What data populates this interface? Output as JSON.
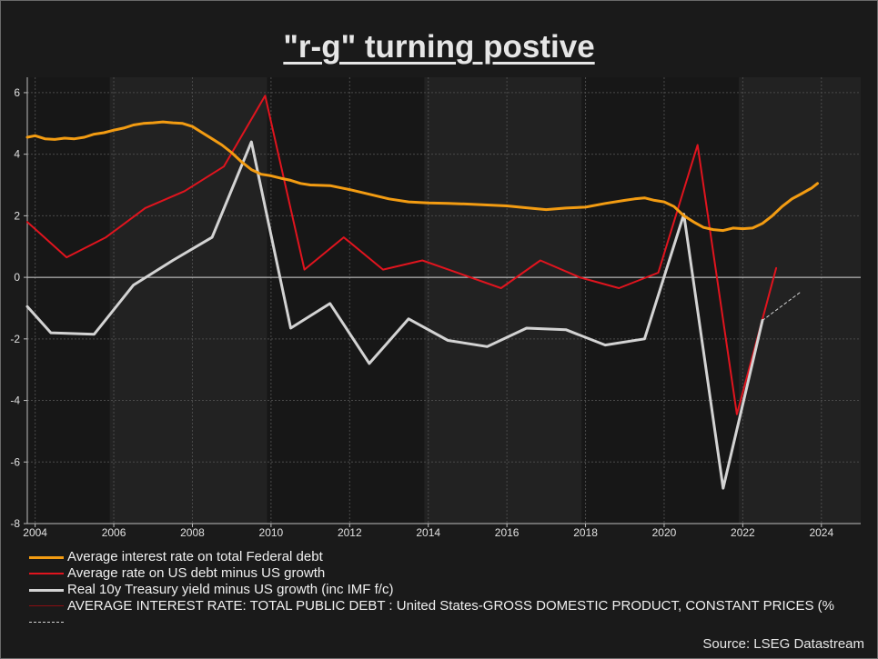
{
  "chart_data": {
    "type": "line",
    "title": "\"r-g\" turning postive",
    "xlabel": "",
    "ylabel": "",
    "xlim": [
      2003.8,
      2025.0
    ],
    "ylim": [
      -8,
      6.5
    ],
    "xticks": [
      2004,
      2006,
      2008,
      2010,
      2012,
      2014,
      2016,
      2018,
      2020,
      2022,
      2024
    ],
    "xtick_labels": [
      "2004",
      "2006",
      "2008",
      "2010",
      "2012",
      "2014",
      "2016",
      "2018",
      "2020",
      "2022",
      "2024"
    ],
    "yticks": [
      -8,
      -6,
      -4,
      -2,
      0,
      2,
      4,
      6
    ],
    "ytick_labels": [
      "-8",
      "-6",
      "-4",
      "-2",
      "0",
      "2",
      "4",
      "6"
    ],
    "grid": true,
    "zero_line": true,
    "shaded_bands": [
      [
        2005.9,
        2009.9
      ],
      [
        2013.9,
        2017.9
      ],
      [
        2021.9,
        2025.0
      ]
    ],
    "series": [
      {
        "name": "Average interest rate on total Federal debt",
        "color": "#f39c12",
        "style": "solid",
        "points": [
          [
            2003.8,
            4.55
          ],
          [
            2004.0,
            4.6
          ],
          [
            2004.25,
            4.5
          ],
          [
            2004.5,
            4.48
          ],
          [
            2004.75,
            4.52
          ],
          [
            2005.0,
            4.5
          ],
          [
            2005.25,
            4.55
          ],
          [
            2005.5,
            4.65
          ],
          [
            2005.75,
            4.7
          ],
          [
            2006.0,
            4.78
          ],
          [
            2006.25,
            4.85
          ],
          [
            2006.5,
            4.95
          ],
          [
            2006.75,
            5.0
          ],
          [
            2007.0,
            5.02
          ],
          [
            2007.25,
            5.05
          ],
          [
            2007.5,
            5.02
          ],
          [
            2007.75,
            5.0
          ],
          [
            2008.0,
            4.9
          ],
          [
            2008.25,
            4.7
          ],
          [
            2008.5,
            4.5
          ],
          [
            2008.75,
            4.3
          ],
          [
            2009.0,
            4.05
          ],
          [
            2009.25,
            3.75
          ],
          [
            2009.5,
            3.5
          ],
          [
            2009.75,
            3.35
          ],
          [
            2010.0,
            3.3
          ],
          [
            2010.25,
            3.22
          ],
          [
            2010.5,
            3.15
          ],
          [
            2010.75,
            3.05
          ],
          [
            2011.0,
            3.0
          ],
          [
            2011.5,
            2.98
          ],
          [
            2012.0,
            2.85
          ],
          [
            2012.5,
            2.7
          ],
          [
            2013.0,
            2.55
          ],
          [
            2013.5,
            2.45
          ],
          [
            2014.0,
            2.42
          ],
          [
            2014.5,
            2.4
          ],
          [
            2015.0,
            2.38
          ],
          [
            2015.5,
            2.35
          ],
          [
            2016.0,
            2.32
          ],
          [
            2016.5,
            2.26
          ],
          [
            2017.0,
            2.2
          ],
          [
            2017.5,
            2.25
          ],
          [
            2018.0,
            2.28
          ],
          [
            2018.5,
            2.4
          ],
          [
            2019.0,
            2.5
          ],
          [
            2019.25,
            2.55
          ],
          [
            2019.5,
            2.58
          ],
          [
            2019.75,
            2.5
          ],
          [
            2020.0,
            2.45
          ],
          [
            2020.25,
            2.3
          ],
          [
            2020.5,
            2.0
          ],
          [
            2020.75,
            1.8
          ],
          [
            2021.0,
            1.62
          ],
          [
            2021.25,
            1.55
          ],
          [
            2021.5,
            1.52
          ],
          [
            2021.75,
            1.6
          ],
          [
            2022.0,
            1.58
          ],
          [
            2022.25,
            1.6
          ],
          [
            2022.5,
            1.75
          ],
          [
            2022.75,
            2.0
          ],
          [
            2023.0,
            2.3
          ],
          [
            2023.25,
            2.55
          ],
          [
            2023.5,
            2.72
          ],
          [
            2023.75,
            2.9
          ],
          [
            2023.9,
            3.05
          ]
        ]
      },
      {
        "name": "Average rate on US debt minus US growth",
        "color": "#e0141e",
        "style": "solid",
        "points": [
          [
            2003.8,
            1.8
          ],
          [
            2004.8,
            0.65
          ],
          [
            2005.8,
            1.3
          ],
          [
            2006.8,
            2.25
          ],
          [
            2007.8,
            2.8
          ],
          [
            2008.8,
            3.6
          ],
          [
            2009.85,
            5.9
          ],
          [
            2010.85,
            0.25
          ],
          [
            2011.85,
            1.3
          ],
          [
            2012.85,
            0.25
          ],
          [
            2013.85,
            0.55
          ],
          [
            2014.85,
            0.1
          ],
          [
            2015.85,
            -0.35
          ],
          [
            2016.85,
            0.55
          ],
          [
            2017.85,
            0.0
          ],
          [
            2018.85,
            -0.35
          ],
          [
            2019.85,
            0.15
          ],
          [
            2020.85,
            4.3
          ],
          [
            2021.85,
            -4.45
          ],
          [
            2022.85,
            0.3
          ]
        ]
      },
      {
        "name": "Real 10y Treasury yield minus US growth (inc IMF f/c)",
        "color": "#d3d3d3",
        "style": "solid",
        "points": [
          [
            2003.8,
            -0.95
          ],
          [
            2004.4,
            -1.8
          ],
          [
            2005.5,
            -1.85
          ],
          [
            2006.5,
            -0.25
          ],
          [
            2007.5,
            0.55
          ],
          [
            2008.5,
            1.3
          ],
          [
            2009.5,
            4.4
          ],
          [
            2010.5,
            -1.65
          ],
          [
            2011.5,
            -0.85
          ],
          [
            2012.5,
            -2.8
          ],
          [
            2013.5,
            -1.35
          ],
          [
            2014.5,
            -2.05
          ],
          [
            2015.5,
            -2.25
          ],
          [
            2016.5,
            -1.65
          ],
          [
            2017.5,
            -1.7
          ],
          [
            2018.5,
            -2.2
          ],
          [
            2019.5,
            -2.0
          ],
          [
            2020.5,
            2.05
          ],
          [
            2021.5,
            -6.85
          ],
          [
            2022.5,
            -1.4
          ]
        ]
      },
      {
        "name": "AVERAGE INTEREST RATE: TOTAL PUBLIC DEBT : United States-GROSS DOMESTIC PRODUCT, CONSTANT PRICES (%",
        "color": "#8b0d12",
        "style": "solid",
        "points": []
      },
      {
        "name": "",
        "color": "#d3d3d3",
        "style": "dashed",
        "points": [
          [
            2022.5,
            -1.4
          ],
          [
            2023.5,
            -0.45
          ]
        ]
      }
    ]
  },
  "source": "Source: LSEG Datastream"
}
